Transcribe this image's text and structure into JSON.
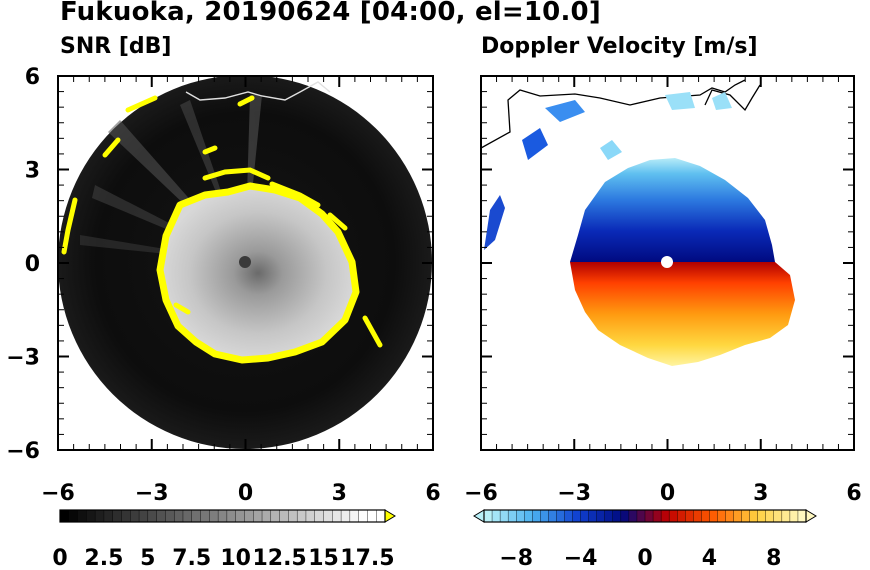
{
  "figure": {
    "title": "Fukuoka, 20190624 [04:00, el=10.0]"
  },
  "chart_data": [
    {
      "type": "heatmap",
      "title": "SNR [dB]",
      "x_ticks": [
        -6,
        -3,
        0,
        3,
        6
      ],
      "y_ticks": [
        6,
        3,
        0,
        -3,
        -6
      ],
      "xlim": [
        -6,
        6
      ],
      "ylim": [
        -6,
        6
      ],
      "colorbar": {
        "range": [
          0,
          18.5
        ],
        "step": 0.5,
        "extend": "max",
        "tick_labels": [
          "0",
          "2.5",
          "5",
          "7.5",
          "10",
          "12.5",
          "15",
          "17.5"
        ],
        "colors": [
          "#000000",
          "#ffffff",
          "#ffff00"
        ]
      }
    },
    {
      "type": "heatmap",
      "title": "Doppler Velocity [m/s]",
      "x_ticks": [
        -6,
        -3,
        0,
        3,
        6
      ],
      "y_ticks": [
        6,
        3,
        0,
        -3,
        -6
      ],
      "xlim": [
        -6,
        6
      ],
      "ylim": [
        -6,
        6
      ],
      "colorbar": {
        "range": [
          -10,
          10
        ],
        "step": 0.5,
        "extend": "both",
        "tick_labels": [
          "−8",
          "−4",
          "0",
          "4",
          "8"
        ],
        "colors": [
          "#b8f0f8",
          "#4ab0f0",
          "#1040d0",
          "#000a80",
          "#c00000",
          "#ff5a00",
          "#ffd040",
          "#fff8c0"
        ]
      }
    }
  ]
}
